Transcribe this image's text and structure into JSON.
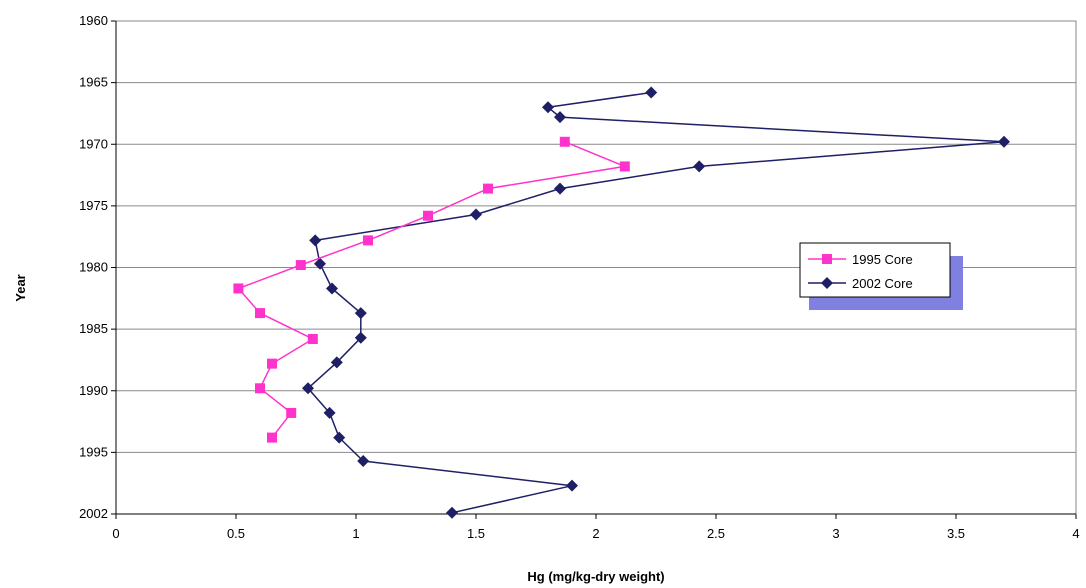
{
  "chart_data": {
    "type": "line",
    "title": "",
    "xlabel": "Hg (mg/kg-dry weight)",
    "ylabel": "Year",
    "xlim": [
      0,
      4
    ],
    "x_ticks": [
      "0",
      "0.5",
      "1",
      "1.5",
      "2",
      "2.5",
      "3",
      "3.5",
      "4"
    ],
    "ylim": [
      1960,
      2000
    ],
    "y_reversed": true,
    "y_ticks": [
      "1960",
      "1965",
      "1970",
      "1975",
      "1980",
      "1985",
      "1990",
      "1995",
      "2002"
    ],
    "grid": "horizontal",
    "legend_position": "right",
    "series": [
      {
        "name": "1995 Core",
        "color": "#ff33cc",
        "marker": "square",
        "points": [
          {
            "x": 1.87,
            "y": 1969.8
          },
          {
            "x": 2.12,
            "y": 1971.8
          },
          {
            "x": 1.55,
            "y": 1973.6
          },
          {
            "x": 1.3,
            "y": 1975.8
          },
          {
            "x": 1.05,
            "y": 1977.8
          },
          {
            "x": 0.77,
            "y": 1979.8
          },
          {
            "x": 0.51,
            "y": 1981.7
          },
          {
            "x": 0.6,
            "y": 1983.7
          },
          {
            "x": 0.82,
            "y": 1985.8
          },
          {
            "x": 0.65,
            "y": 1987.8
          },
          {
            "x": 0.6,
            "y": 1989.8
          },
          {
            "x": 0.73,
            "y": 1991.8
          },
          {
            "x": 0.65,
            "y": 1993.8
          }
        ]
      },
      {
        "name": "2002 Core",
        "color": "#1f1f66",
        "marker": "diamond",
        "points": [
          {
            "x": 2.23,
            "y": 1965.8
          },
          {
            "x": 1.8,
            "y": 1967.0
          },
          {
            "x": 1.85,
            "y": 1967.8
          },
          {
            "x": 3.7,
            "y": 1969.8
          },
          {
            "x": 2.43,
            "y": 1971.8
          },
          {
            "x": 1.85,
            "y": 1973.6
          },
          {
            "x": 1.5,
            "y": 1975.7
          },
          {
            "x": 0.83,
            "y": 1977.8
          },
          {
            "x": 0.85,
            "y": 1979.7
          },
          {
            "x": 0.9,
            "y": 1981.7
          },
          {
            "x": 1.02,
            "y": 1983.7
          },
          {
            "x": 1.02,
            "y": 1985.7
          },
          {
            "x": 0.92,
            "y": 1987.7
          },
          {
            "x": 0.8,
            "y": 1989.8
          },
          {
            "x": 0.89,
            "y": 1991.8
          },
          {
            "x": 0.93,
            "y": 1993.8
          },
          {
            "x": 1.03,
            "y": 1995.7
          },
          {
            "x": 1.9,
            "y": 1997.7
          },
          {
            "x": 1.4,
            "y": 1999.9
          }
        ]
      }
    ]
  }
}
